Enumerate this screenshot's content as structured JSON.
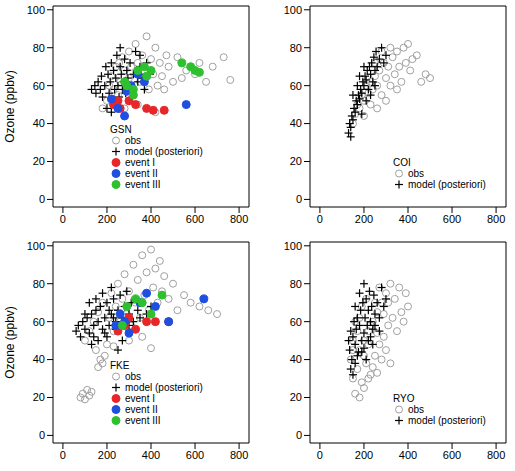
{
  "chart_data": [
    {
      "type": "scatter",
      "title": "GSN",
      "y_label": "Ozone (ppbv)",
      "xlim": [
        -45,
        845
      ],
      "xticks": [
        0,
        200,
        400,
        600,
        800
      ],
      "ylim": [
        -4,
        102
      ],
      "yticks": [
        0,
        20,
        40,
        60,
        80,
        100
      ],
      "series": [
        {
          "name": "obs",
          "color": "#a0a0a0",
          "marker": "open_circle",
          "x": [
            180,
            200,
            210,
            220,
            230,
            240,
            250,
            255,
            260,
            270,
            280,
            290,
            300,
            300,
            310,
            320,
            330,
            340,
            350,
            360,
            370,
            380,
            390,
            400,
            410,
            420,
            430,
            440,
            450,
            460,
            480,
            500,
            520,
            540,
            560,
            600,
            620,
            650,
            680,
            730,
            760,
            340,
            420,
            280,
            470
          ],
          "y": [
            48,
            52,
            60,
            65,
            58,
            70,
            55,
            72,
            62,
            75,
            68,
            58,
            78,
            64,
            70,
            55,
            82,
            72,
            62,
            76,
            68,
            86,
            58,
            74,
            66,
            80,
            60,
            72,
            65,
            58,
            70,
            62,
            75,
            64,
            68,
            66,
            72,
            62,
            70,
            75,
            63,
            50,
            46,
            48,
            76
          ]
        },
        {
          "name": "model (posteriori)",
          "color": "#000000",
          "marker": "plus",
          "x": [
            130,
            145,
            150,
            160,
            170,
            175,
            180,
            190,
            195,
            200,
            205,
            210,
            215,
            220,
            225,
            230,
            235,
            240,
            245,
            250,
            255,
            260,
            265,
            270,
            275,
            280,
            285,
            290,
            295,
            300,
            305,
            310,
            320,
            330,
            340,
            350,
            360,
            370,
            380,
            395,
            220,
            240,
            300,
            260,
            350
          ],
          "y": [
            58,
            60,
            56,
            62,
            58,
            65,
            54,
            60,
            70,
            48,
            66,
            56,
            62,
            72,
            52,
            68,
            58,
            64,
            76,
            60,
            54,
            70,
            66,
            58,
            62,
            74,
            56,
            68,
            64,
            60,
            72,
            58,
            66,
            78,
            62,
            70,
            64,
            58,
            72,
            66,
            46,
            50,
            52,
            80,
            76
          ]
        },
        {
          "name": "event I",
          "color": "#e8262a",
          "marker": "circle",
          "x": [
            230,
            250,
            260,
            300,
            330,
            380,
            410,
            460
          ],
          "y": [
            50,
            52,
            48,
            52,
            50,
            48,
            47,
            47
          ]
        },
        {
          "name": "event II",
          "color": "#1f4fe0",
          "marker": "circle",
          "x": [
            220,
            250,
            280,
            290,
            310,
            340,
            370,
            560
          ],
          "y": [
            53,
            48,
            44,
            57,
            60,
            66,
            62,
            50
          ]
        },
        {
          "name": "event III",
          "color": "#2ec02e",
          "marker": "circle",
          "x": [
            280,
            290,
            320,
            320,
            340,
            370,
            380,
            400,
            540,
            580,
            600,
            620
          ],
          "y": [
            62,
            60,
            58,
            55,
            68,
            70,
            65,
            68,
            72,
            70,
            68,
            67
          ]
        }
      ]
    },
    {
      "type": "scatter",
      "title": "COI",
      "xlim": [
        -45,
        845
      ],
      "xticks": [
        0,
        200,
        400,
        600,
        800
      ],
      "ylim": [
        -4,
        102
      ],
      "yticks": [
        0,
        20,
        40,
        60,
        80,
        100
      ],
      "series": [
        {
          "name": "obs",
          "color": "#a0a0a0",
          "marker": "open_circle",
          "x": [
            150,
            160,
            170,
            180,
            190,
            200,
            210,
            220,
            230,
            240,
            250,
            260,
            270,
            280,
            290,
            300,
            310,
            320,
            330,
            340,
            350,
            360,
            370,
            380,
            390,
            400,
            410,
            420,
            440,
            460,
            480,
            500,
            200,
            230,
            260,
            300,
            350,
            250,
            280,
            320
          ],
          "y": [
            40,
            45,
            50,
            48,
            55,
            52,
            60,
            56,
            62,
            58,
            65,
            60,
            68,
            55,
            72,
            64,
            70,
            60,
            75,
            66,
            78,
            70,
            62,
            80,
            72,
            82,
            68,
            74,
            76,
            62,
            66,
            64,
            44,
            50,
            48,
            52,
            58,
            72,
            78,
            80
          ]
        },
        {
          "name": "model (posteriori)",
          "color": "#000000",
          "marker": "plus",
          "x": [
            130,
            135,
            140,
            145,
            150,
            155,
            160,
            165,
            170,
            175,
            180,
            185,
            190,
            195,
            200,
            205,
            210,
            215,
            220,
            225,
            230,
            235,
            240,
            245,
            250,
            255,
            260,
            270,
            280,
            290,
            300,
            150,
            170,
            190,
            210,
            230,
            250,
            180,
            200,
            140
          ],
          "y": [
            35,
            40,
            38,
            44,
            42,
            48,
            46,
            52,
            50,
            55,
            53,
            58,
            56,
            62,
            60,
            65,
            63,
            68,
            58,
            70,
            66,
            72,
            62,
            75,
            68,
            78,
            70,
            74,
            80,
            72,
            76,
            55,
            60,
            45,
            52,
            55,
            60,
            65,
            70,
            33
          ]
        }
      ]
    },
    {
      "type": "scatter",
      "title": "FKE",
      "y_label": "Ozone (ppbv)",
      "xlim": [
        -45,
        845
      ],
      "xticks": [
        0,
        200,
        400,
        600,
        800
      ],
      "ylim": [
        -4,
        102
      ],
      "yticks": [
        0,
        20,
        40,
        60,
        80,
        100
      ],
      "series": [
        {
          "name": "obs",
          "color": "#a0a0a0",
          "marker": "open_circle",
          "x": [
            80,
            90,
            100,
            110,
            120,
            130,
            160,
            170,
            180,
            190,
            100,
            120,
            140,
            150,
            160,
            180,
            200,
            210,
            220,
            230,
            240,
            250,
            260,
            270,
            280,
            290,
            300,
            310,
            320,
            330,
            340,
            350,
            360,
            370,
            380,
            390,
            400,
            410,
            420,
            430,
            440,
            450,
            460,
            480,
            500,
            520,
            550,
            580,
            620,
            660,
            700,
            230,
            300,
            360,
            400
          ],
          "y": [
            20,
            22,
            19,
            24,
            21,
            23,
            36,
            40,
            38,
            42,
            50,
            55,
            60,
            45,
            65,
            70,
            48,
            62,
            75,
            55,
            68,
            80,
            60,
            72,
            85,
            64,
            76,
            58,
            90,
            70,
            82,
            62,
            95,
            74,
            86,
            66,
            98,
            78,
            88,
            70,
            92,
            76,
            84,
            72,
            80,
            66,
            74,
            70,
            68,
            66,
            64,
            47,
            50,
            52,
            46
          ]
        },
        {
          "name": "model (posteriori)",
          "color": "#000000",
          "marker": "plus",
          "x": [
            60,
            70,
            80,
            90,
            100,
            110,
            120,
            130,
            140,
            150,
            160,
            170,
            180,
            190,
            200,
            210,
            220,
            230,
            240,
            250,
            260,
            270,
            280,
            290,
            300,
            310,
            320,
            330,
            340,
            360,
            380,
            400,
            130,
            160,
            200,
            150,
            180,
            220,
            250,
            270,
            100,
            120,
            140,
            190,
            210,
            240,
            260,
            300,
            350,
            230
          ],
          "y": [
            55,
            58,
            52,
            60,
            56,
            62,
            54,
            64,
            58,
            66,
            60,
            68,
            56,
            62,
            70,
            58,
            64,
            72,
            60,
            66,
            74,
            62,
            68,
            76,
            64,
            70,
            60,
            72,
            66,
            70,
            64,
            68,
            48,
            50,
            52,
            72,
            75,
            78,
            45,
            50,
            64,
            70,
            52,
            54,
            66,
            56,
            58,
            58,
            62,
            62
          ]
        },
        {
          "name": "event I",
          "color": "#e8262a",
          "marker": "circle",
          "x": [
            250,
            280,
            300,
            330,
            380,
            420,
            480
          ],
          "y": [
            55,
            58,
            62,
            56,
            60,
            60,
            60
          ]
        },
        {
          "name": "event II",
          "color": "#1f4fe0",
          "marker": "circle",
          "x": [
            240,
            260,
            280,
            300,
            350,
            380,
            420,
            480,
            640
          ],
          "y": [
            58,
            64,
            60,
            54,
            70,
            75,
            68,
            60,
            72
          ]
        },
        {
          "name": "event III",
          "color": "#2ec02e",
          "marker": "circle",
          "x": [
            270,
            290,
            330,
            360,
            400,
            450
          ],
          "y": [
            58,
            68,
            72,
            70,
            64,
            74
          ]
        }
      ]
    },
    {
      "type": "scatter",
      "title": "RYO",
      "xlim": [
        -45,
        845
      ],
      "xticks": [
        0,
        200,
        400,
        600,
        800
      ],
      "ylim": [
        -4,
        102
      ],
      "yticks": [
        0,
        20,
        40,
        60,
        80,
        100
      ],
      "series": [
        {
          "name": "obs",
          "color": "#a0a0a0",
          "marker": "open_circle",
          "x": [
            140,
            150,
            160,
            170,
            180,
            190,
            200,
            210,
            220,
            230,
            240,
            250,
            260,
            270,
            280,
            290,
            300,
            310,
            320,
            330,
            340,
            350,
            360,
            370,
            380,
            390,
            400,
            150,
            160,
            170,
            180,
            190,
            200,
            210,
            220,
            230,
            240,
            250,
            260,
            270,
            280,
            290,
            300,
            310,
            320,
            180,
            200,
            220,
            260,
            150
          ],
          "y": [
            40,
            30,
            22,
            35,
            45,
            28,
            50,
            38,
            55,
            32,
            60,
            42,
            65,
            48,
            70,
            52,
            75,
            58,
            80,
            62,
            72,
            55,
            78,
            65,
            60,
            75,
            68,
            50,
            60,
            55,
            62,
            68,
            42,
            72,
            48,
            58,
            36,
            70,
            54,
            78,
            40,
            64,
            45,
            70,
            38,
            20,
            25,
            30,
            33,
            45
          ]
        },
        {
          "name": "model (posteriori)",
          "color": "#000000",
          "marker": "plus",
          "x": [
            130,
            135,
            140,
            145,
            150,
            155,
            160,
            165,
            170,
            175,
            180,
            185,
            190,
            195,
            200,
            205,
            210,
            215,
            220,
            225,
            230,
            235,
            240,
            245,
            250,
            260,
            270,
            280,
            290,
            300,
            140,
            150,
            160,
            170,
            200,
            220,
            240,
            180,
            200,
            160,
            230,
            250,
            270,
            190,
            210
          ],
          "y": [
            50,
            45,
            55,
            40,
            52,
            60,
            48,
            56,
            62,
            44,
            58,
            66,
            50,
            70,
            54,
            62,
            72,
            58,
            66,
            76,
            60,
            68,
            56,
            74,
            64,
            70,
            62,
            78,
            68,
            72,
            35,
            32,
            38,
            42,
            46,
            50,
            48,
            75,
            80,
            68,
            52,
            58,
            55,
            44,
            40
          ]
        }
      ]
    }
  ]
}
